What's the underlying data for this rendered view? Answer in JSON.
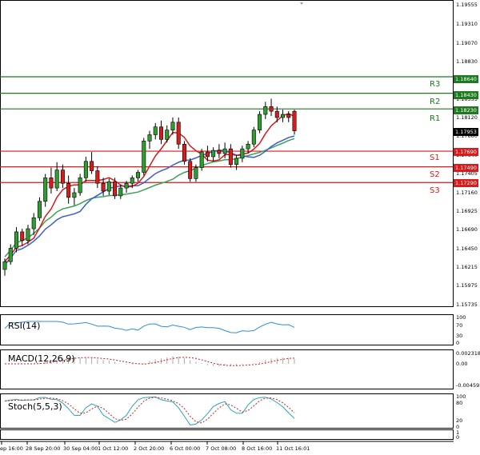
{
  "colors": {
    "background": "#ffffff",
    "bull_candle": "#2e9e2e",
    "bear_candle": "#d81b1b",
    "level_line": "#1e7a1e",
    "support_line": "#d81b1b",
    "ma_fast": "#d81b1b",
    "ma_slow": "#3b5fd1",
    "ma_long": "#3aa35a",
    "rsi_line": "#2f8fd8",
    "stoch_k": "#27a7b8",
    "stoch_d": "#d81b1b"
  },
  "price_axis": {
    "ticks": [
      "1.19555",
      "1.19310",
      "1.19070",
      "1.18830",
      "1.18595",
      "1.18355",
      "1.18120",
      "1.17880",
      "1.17640",
      "1.17405",
      "1.17160",
      "1.16925",
      "1.16690",
      "1.16450",
      "1.16215",
      "1.15975",
      "1.15735"
    ]
  },
  "levels": {
    "r3": {
      "label": "R3",
      "price": "1.18640"
    },
    "r2": {
      "label": "R2",
      "price": "1.18430"
    },
    "r1": {
      "label": "R1",
      "price": "1.18230"
    },
    "s1": {
      "label": "S1",
      "price": "1.17690"
    },
    "s2": {
      "label": "S2",
      "price": "1.17490"
    },
    "s3": {
      "label": "S3",
      "price": "1.17290"
    }
  },
  "current_price": "1.17953",
  "time_axis": [
    "ep 16:00",
    "28 Sep 20:00",
    "30 Sep 04:00",
    "1 Oct 12:00",
    "2 Oct 20:00",
    "6 Oct 00:00",
    "7 Oct 08:00",
    "8 Oct 16:00",
    "11 Oct 16:01"
  ],
  "indicators": {
    "rsi": {
      "label": "RSI(14)",
      "ticks": [
        "100",
        "70",
        "30",
        "0"
      ]
    },
    "macd": {
      "label": "MACD(12,26,9)",
      "ticks": [
        "0.002318",
        "0.00",
        "-0.004592"
      ]
    },
    "stoch": {
      "label": "Stoch(5,5,3)",
      "ticks": [
        "100",
        "80",
        "20",
        "0"
      ]
    }
  },
  "chart_data": {
    "type": "candlestick",
    "ylim": [
      1.1571,
      1.196
    ],
    "candles": [
      [
        1.1618,
        1.1632,
        1.161,
        1.1628
      ],
      [
        1.1628,
        1.165,
        1.1624,
        1.1645
      ],
      [
        1.1645,
        1.1672,
        1.164,
        1.1666
      ],
      [
        1.1666,
        1.167,
        1.1648,
        1.1655
      ],
      [
        1.1655,
        1.1675,
        1.165,
        1.167
      ],
      [
        1.167,
        1.169,
        1.1662,
        1.1684
      ],
      [
        1.1684,
        1.171,
        1.168,
        1.1705
      ],
      [
        1.1705,
        1.174,
        1.1698,
        1.1735
      ],
      [
        1.1735,
        1.1748,
        1.1715,
        1.1722
      ],
      [
        1.1722,
        1.1755,
        1.1718,
        1.1745
      ],
      [
        1.1745,
        1.1752,
        1.1722,
        1.1728
      ],
      [
        1.1728,
        1.1738,
        1.1702,
        1.171
      ],
      [
        1.171,
        1.1722,
        1.17,
        1.1716
      ],
      [
        1.1716,
        1.174,
        1.1712,
        1.1735
      ],
      [
        1.1735,
        1.1762,
        1.173,
        1.1756
      ],
      [
        1.1756,
        1.1768,
        1.174,
        1.1744
      ],
      [
        1.1744,
        1.175,
        1.1722,
        1.1728
      ],
      [
        1.1728,
        1.1735,
        1.1712,
        1.1718
      ],
      [
        1.1718,
        1.1734,
        1.1713,
        1.173
      ],
      [
        1.173,
        1.1735,
        1.1708,
        1.1712
      ],
      [
        1.1712,
        1.1726,
        1.1708,
        1.1722
      ],
      [
        1.1722,
        1.1731,
        1.1716,
        1.1728
      ],
      [
        1.1728,
        1.1738,
        1.1722,
        1.1735
      ],
      [
        1.1735,
        1.1745,
        1.173,
        1.1742
      ],
      [
        1.1742,
        1.1786,
        1.1738,
        1.1782
      ],
      [
        1.1782,
        1.1795,
        1.1772,
        1.179
      ],
      [
        1.179,
        1.1805,
        1.1784,
        1.18
      ],
      [
        1.18,
        1.1808,
        1.1778,
        1.1784
      ],
      [
        1.1784,
        1.1802,
        1.178,
        1.1796
      ],
      [
        1.1796,
        1.1812,
        1.179,
        1.1806
      ],
      [
        1.1806,
        1.1812,
        1.1772,
        1.1778
      ],
      [
        1.1778,
        1.1782,
        1.1752,
        1.1756
      ],
      [
        1.1756,
        1.176,
        1.173,
        1.1734
      ],
      [
        1.1734,
        1.1752,
        1.173,
        1.1748
      ],
      [
        1.1748,
        1.1772,
        1.1744,
        1.1768
      ],
      [
        1.1768,
        1.1776,
        1.1756,
        1.1762
      ],
      [
        1.1762,
        1.1774,
        1.1756,
        1.177
      ],
      [
        1.177,
        1.1778,
        1.176,
        1.1766
      ],
      [
        1.1766,
        1.178,
        1.176,
        1.1772
      ],
      [
        1.1772,
        1.1778,
        1.1748,
        1.1752
      ],
      [
        1.1752,
        1.1764,
        1.1745,
        1.176
      ],
      [
        1.176,
        1.1776,
        1.1755,
        1.1772
      ],
      [
        1.1772,
        1.1782,
        1.1766,
        1.1778
      ],
      [
        1.1778,
        1.18,
        1.1774,
        1.1796
      ],
      [
        1.1796,
        1.182,
        1.1792,
        1.1816
      ],
      [
        1.1816,
        1.1832,
        1.181,
        1.1826
      ],
      [
        1.1826,
        1.1836,
        1.1814,
        1.182
      ],
      [
        1.182,
        1.1826,
        1.1806,
        1.1812
      ],
      [
        1.1812,
        1.1822,
        1.1806,
        1.1816
      ],
      [
        1.1816,
        1.182,
        1.1806,
        1.1812
      ],
      [
        1.182,
        1.1822,
        1.179,
        1.1795
      ]
    ]
  }
}
